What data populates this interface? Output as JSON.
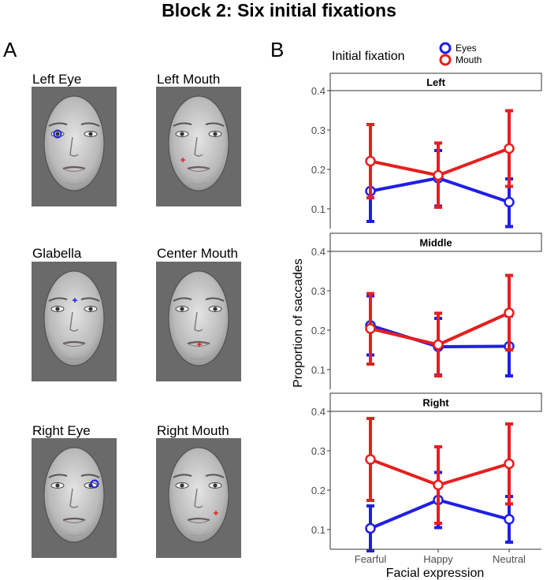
{
  "figure": {
    "title": "Block 2: Six initial fixations",
    "panel_a_letter": "A",
    "panel_b_letter": "B"
  },
  "faces": [
    {
      "label": "Left Eye",
      "marker": "blue"
    },
    {
      "label": "Left Mouth",
      "marker": "red"
    },
    {
      "label": "Glabella",
      "marker": "blue"
    },
    {
      "label": "Center Mouth",
      "marker": "red"
    },
    {
      "label": "Right Eye",
      "marker": "blue"
    },
    {
      "label": "Right Mouth",
      "marker": "red"
    }
  ],
  "colors": {
    "eyes": "#1f1fe6",
    "mouth": "#e61f1f",
    "face_background": "#6a6a6a",
    "strip_border": "#333333"
  },
  "chart_data": {
    "type": "line",
    "xlabel": "Facial expression",
    "ylabel": "Proportion of saccades",
    "legend": {
      "title": "Initial fixation",
      "placement": "top",
      "entries": [
        "Eyes",
        "Mouth"
      ]
    },
    "categories": [
      "Fearful",
      "Happy",
      "Neutral"
    ],
    "ylim": [
      0.05,
      0.4
    ],
    "yticks": [
      "0.1",
      "0.2",
      "0.3",
      "0.4"
    ],
    "panels": [
      {
        "strip": "Left",
        "series": [
          {
            "name": "Eyes",
            "values": [
              0.145,
              0.178,
              0.117
            ],
            "lower": [
              0.068,
              0.107,
              0.055
            ],
            "upper": [
              0.222,
              0.248,
              0.176
            ]
          },
          {
            "name": "Mouth",
            "values": [
              0.221,
              0.185,
              0.253
            ],
            "lower": [
              0.128,
              0.104,
              0.157
            ],
            "upper": [
              0.314,
              0.267,
              0.349
            ]
          }
        ]
      },
      {
        "strip": "Middle",
        "series": [
          {
            "name": "Eyes",
            "values": [
              0.212,
              0.158,
              0.159
            ],
            "lower": [
              0.137,
              0.086,
              0.084
            ],
            "upper": [
              0.287,
              0.23,
              0.236
            ]
          },
          {
            "name": "Mouth",
            "values": [
              0.204,
              0.163,
              0.244
            ],
            "lower": [
              0.114,
              0.084,
              0.15
            ],
            "upper": [
              0.293,
              0.243,
              0.339
            ]
          }
        ]
      },
      {
        "strip": "Right",
        "series": [
          {
            "name": "Eyes",
            "values": [
              0.103,
              0.175,
              0.126
            ],
            "lower": [
              0.046,
              0.105,
              0.068
            ],
            "upper": [
              0.16,
              0.245,
              0.184
            ]
          },
          {
            "name": "Mouth",
            "values": [
              0.278,
              0.213,
              0.267
            ],
            "lower": [
              0.174,
              0.116,
              0.165
            ],
            "upper": [
              0.382,
              0.31,
              0.368
            ]
          }
        ]
      }
    ]
  }
}
